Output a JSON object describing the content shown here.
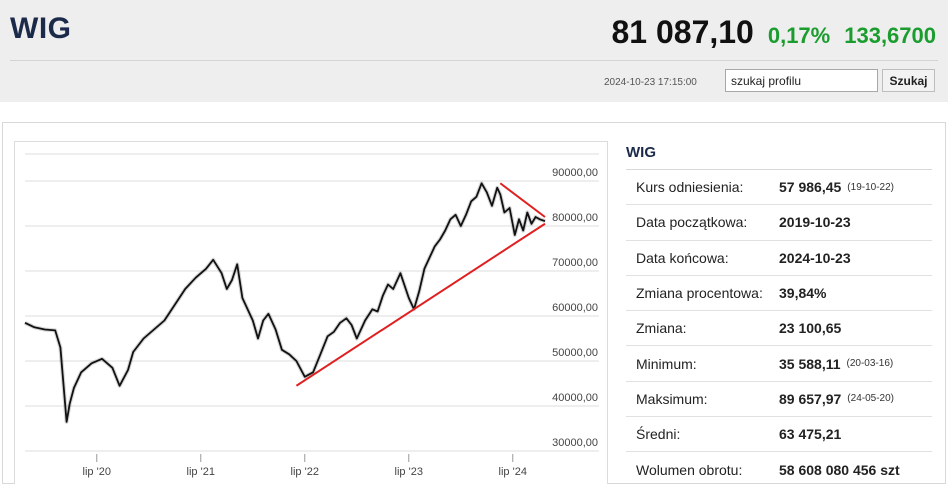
{
  "header": {
    "ticker": "WIG",
    "price": "81 087,10",
    "change_pct": "0,17%",
    "change_abs": "133,6700",
    "timestamp": "2024-10-23 17:15:00",
    "search_value": "szukaj profilu",
    "search_button": "Szukaj",
    "up_color": "#1a9d2e"
  },
  "stats": {
    "title": "WIG",
    "rows": [
      {
        "label": "Kurs odniesienia:",
        "value": "57 986,45",
        "sub": "(19-10-22)"
      },
      {
        "label": "Data początkowa:",
        "value": "2019-10-23",
        "sub": ""
      },
      {
        "label": "Data końcowa:",
        "value": "2024-10-23",
        "sub": ""
      },
      {
        "label": "Zmiana procentowa:",
        "value": "39,84%",
        "sub": ""
      },
      {
        "label": "Zmiana:",
        "value": "23 100,65",
        "sub": ""
      },
      {
        "label": "Minimum:",
        "value": "35 588,11",
        "sub": "(20-03-16)"
      },
      {
        "label": "Maksimum:",
        "value": "89 657,97",
        "sub": "(24-05-20)"
      },
      {
        "label": "Średni:",
        "value": "63 475,21",
        "sub": ""
      },
      {
        "label": "Wolumen obrotu:",
        "value": "58 608 080 456 szt",
        "sub": ""
      }
    ]
  },
  "chart_data": {
    "type": "line",
    "y_ticks": [
      "90000,00",
      "80000,00",
      "70000,00",
      "60000,00",
      "50000,00",
      "40000,00",
      "30000,00"
    ],
    "y_tick_values": [
      90000,
      80000,
      70000,
      60000,
      50000,
      40000,
      30000
    ],
    "x_ticks": [
      "lip '20",
      "lip '21",
      "lip '22",
      "lip '23",
      "lip '24"
    ],
    "x_tick_values": [
      2020.5,
      2021.5,
      2022.5,
      2023.5,
      2024.5
    ],
    "xlim": [
      2019.81,
      2024.81
    ],
    "ylim": [
      28000,
      96000
    ],
    "grid": true,
    "line_color": "#111111",
    "trend_color": "#e02020",
    "series": [
      {
        "x": [
          2019.81,
          2019.9,
          2020.0,
          2020.1,
          2020.15,
          2020.21,
          2020.24,
          2020.28,
          2020.35,
          2020.45,
          2020.55,
          2020.65,
          2020.72,
          2020.8,
          2020.85,
          2020.95,
          2021.05,
          2021.15,
          2021.25,
          2021.35,
          2021.45,
          2021.55,
          2021.62,
          2021.7,
          2021.75,
          2021.8,
          2021.85,
          2021.9,
          2022.0,
          2022.05,
          2022.1,
          2022.15,
          2022.22,
          2022.28,
          2022.35,
          2022.42,
          2022.5,
          2022.58,
          2022.65,
          2022.72,
          2022.78,
          2022.84,
          2022.9,
          2022.95,
          2023.0,
          2023.08,
          2023.15,
          2023.2,
          2023.25,
          2023.3,
          2023.35,
          2023.42,
          2023.5,
          2023.55,
          2023.6,
          2023.65,
          2023.7,
          2023.75,
          2023.8,
          2023.85,
          2023.9,
          2023.95,
          2024.0,
          2024.05,
          2024.1,
          2024.15,
          2024.2,
          2024.25,
          2024.3,
          2024.35,
          2024.38,
          2024.42,
          2024.47,
          2024.52,
          2024.56,
          2024.6,
          2024.64,
          2024.68,
          2024.72,
          2024.76,
          2024.81
        ],
        "y": [
          58500,
          57500,
          57000,
          56800,
          53000,
          36500,
          40500,
          44000,
          47500,
          49500,
          50500,
          48500,
          44500,
          48000,
          52000,
          55000,
          57000,
          59000,
          62500,
          66000,
          68500,
          70500,
          72500,
          69500,
          66000,
          68000,
          71500,
          64000,
          59000,
          55000,
          59000,
          60500,
          57000,
          52500,
          51500,
          50000,
          46500,
          47500,
          51500,
          55500,
          56500,
          58500,
          59500,
          58000,
          55000,
          59000,
          61500,
          61000,
          64500,
          67000,
          66000,
          69500,
          64000,
          61500,
          65500,
          70500,
          73000,
          75500,
          77000,
          79000,
          81500,
          82500,
          80000,
          82500,
          85500,
          86500,
          89500,
          87500,
          84500,
          88500,
          87000,
          83000,
          84000,
          78000,
          81500,
          79000,
          83000,
          80500,
          82000,
          81500,
          81087
        ]
      }
    ],
    "trendlines": [
      {
        "x": [
          2022.42,
          2024.81
        ],
        "y": [
          44500,
          80500
        ]
      },
      {
        "x": [
          2024.38,
          2024.81
        ],
        "y": [
          89500,
          82000
        ]
      }
    ]
  }
}
